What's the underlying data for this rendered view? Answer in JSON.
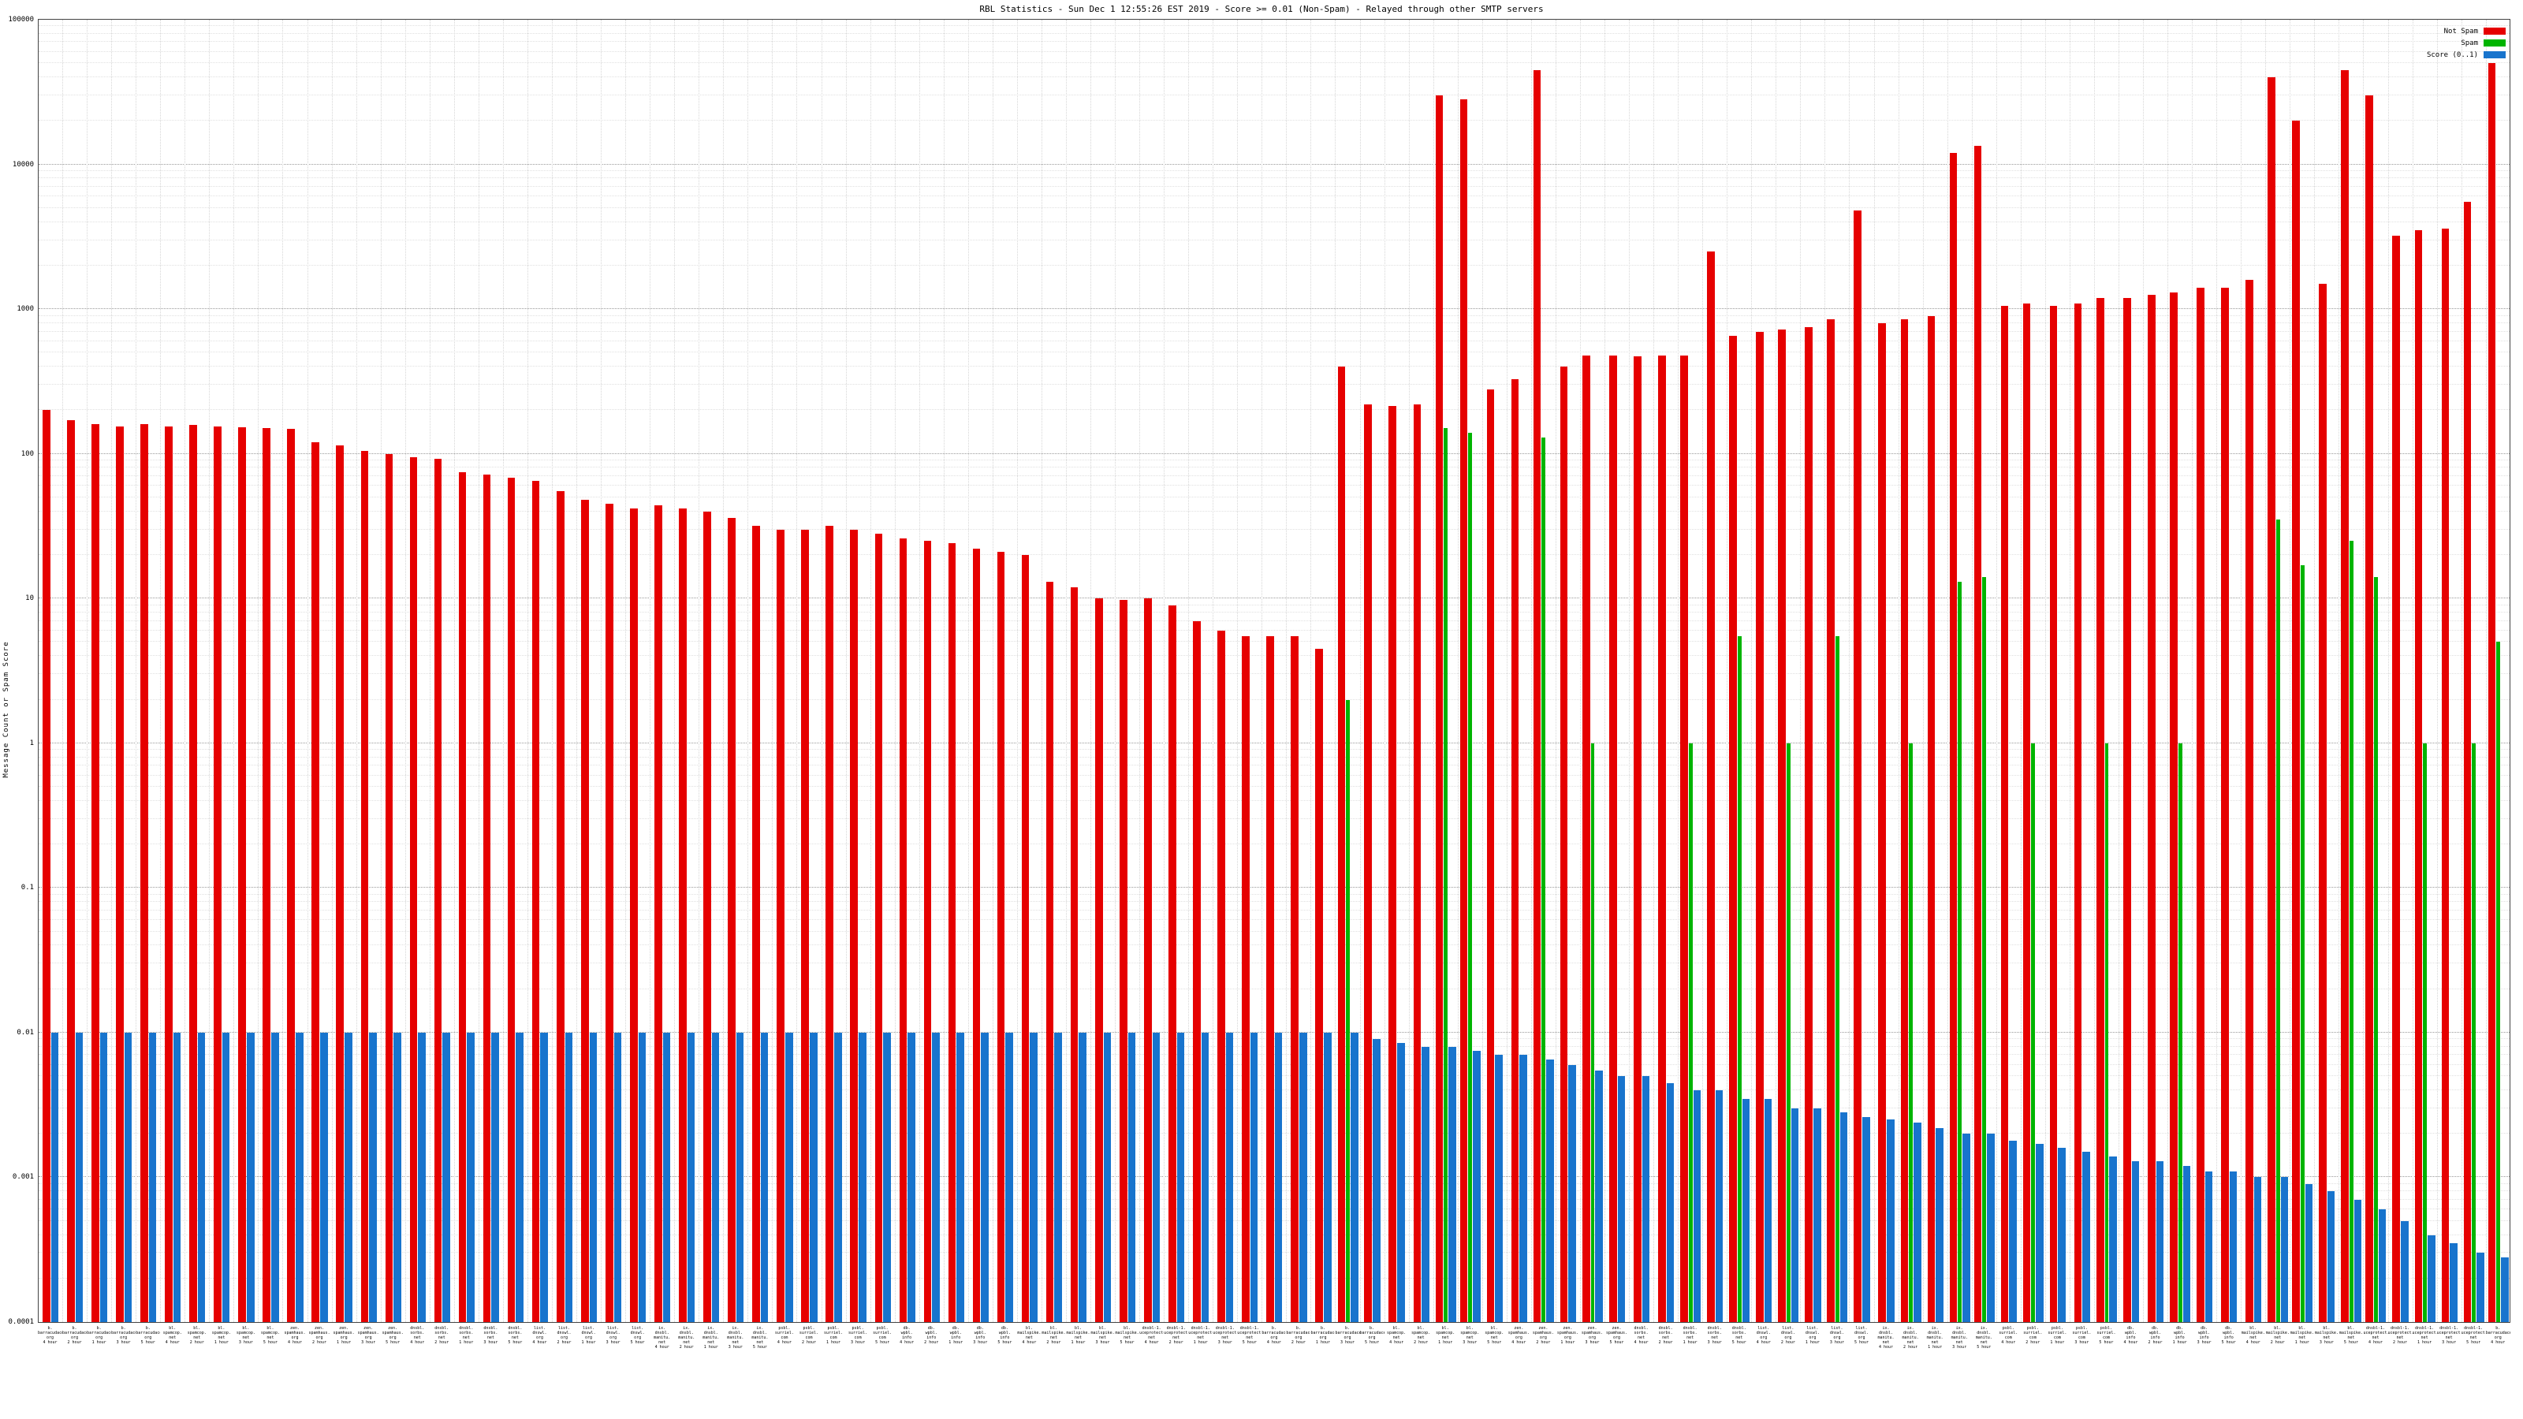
{
  "title": "RBL Statistics - Sun Dec  1 12:55:26 EST 2019 - Score >= 0.01 (Non-Spam) - Relayed through other SMTP servers",
  "ylabel": "Message Count or Spam Score",
  "legend": [
    {
      "label": "Not Spam",
      "color": "#e60000"
    },
    {
      "label": "Spam",
      "color": "#00b400"
    },
    {
      "label": "Score (0..1)",
      "color": "#1874cd"
    }
  ],
  "chart_data": {
    "type": "bar",
    "log_scale": true,
    "grid": true,
    "legend_position": "top-right",
    "ylim": [
      0.0001,
      100000
    ],
    "y_ticks": [
      100000,
      10000,
      1000,
      100,
      10,
      1,
      0.1,
      0.01,
      0.001,
      0.0001
    ],
    "series": [
      "Not Spam",
      "Spam",
      "Score (0..1)"
    ],
    "hosts": [
      "b.barracudacentral.org",
      "bl.spamcop.net",
      "zen.spamhaus.org",
      "dnsbl.sorbs.net",
      "list.dnswl.org",
      "ix.dnsbl.manitu.net",
      "psbl.surriel.com",
      "db.wpbl.info",
      "bl.mailspike.net",
      "dnsbl-1.uceprotect.net"
    ],
    "columns": [
      "host_index",
      "window",
      "not_spam_count",
      "spam_count",
      "score"
    ],
    "categories": [
      [
        0,
        "4 hour",
        200,
        null,
        0.01
      ],
      [
        0,
        "2 hour",
        170,
        null,
        0.01
      ],
      [
        0,
        "1 hour",
        160,
        null,
        0.01
      ],
      [
        0,
        "3 hour",
        155,
        null,
        0.01
      ],
      [
        0,
        "5 hour",
        160,
        null,
        0.01
      ],
      [
        1,
        "4 hour",
        155,
        null,
        0.01
      ],
      [
        1,
        "2 hour",
        158,
        null,
        0.01
      ],
      [
        1,
        "1 hour",
        155,
        null,
        0.01
      ],
      [
        1,
        "3 hour",
        152,
        null,
        0.01
      ],
      [
        1,
        "5 hour",
        150,
        null,
        0.01
      ],
      [
        2,
        "4 hour",
        148,
        null,
        0.01
      ],
      [
        2,
        "2 hour",
        120,
        null,
        0.01
      ],
      [
        2,
        "1 hour",
        115,
        null,
        0.01
      ],
      [
        2,
        "3 hour",
        105,
        null,
        0.01
      ],
      [
        2,
        "5 hour",
        100,
        null,
        0.01
      ],
      [
        3,
        "4 hour",
        95,
        null,
        0.01
      ],
      [
        3,
        "2 hour",
        92,
        null,
        0.01
      ],
      [
        3,
        "1 hour",
        75,
        null,
        0.01
      ],
      [
        3,
        "3 hour",
        72,
        null,
        0.01
      ],
      [
        3,
        "5 hour",
        68,
        null,
        0.01
      ],
      [
        4,
        "4 hour",
        65,
        null,
        0.01
      ],
      [
        4,
        "2 hour",
        55,
        null,
        0.01
      ],
      [
        4,
        "1 hour",
        48,
        null,
        0.01
      ],
      [
        4,
        "3 hour",
        45,
        null,
        0.01
      ],
      [
        4,
        "5 hour",
        42,
        null,
        0.01
      ],
      [
        5,
        "4 hour",
        44,
        null,
        0.01
      ],
      [
        5,
        "2 hour",
        42,
        null,
        0.01
      ],
      [
        5,
        "1 hour",
        40,
        null,
        0.01
      ],
      [
        5,
        "3 hour",
        36,
        null,
        0.01
      ],
      [
        5,
        "5 hour",
        32,
        null,
        0.01
      ],
      [
        6,
        "4 hour",
        30,
        null,
        0.01
      ],
      [
        6,
        "2 hour",
        30,
        null,
        0.01
      ],
      [
        6,
        "1 hour",
        32,
        null,
        0.01
      ],
      [
        6,
        "3 hour",
        30,
        null,
        0.01
      ],
      [
        6,
        "5 hour",
        28,
        null,
        0.01
      ],
      [
        7,
        "4 hour",
        26,
        null,
        0.01
      ],
      [
        7,
        "2 hour",
        25,
        null,
        0.01
      ],
      [
        7,
        "1 hour",
        24,
        null,
        0.01
      ],
      [
        7,
        "3 hour",
        22,
        null,
        0.01
      ],
      [
        7,
        "5 hour",
        21,
        null,
        0.01
      ],
      [
        8,
        "4 hour",
        20,
        null,
        0.01
      ],
      [
        8,
        "2 hour",
        13,
        null,
        0.01
      ],
      [
        8,
        "1 hour",
        12,
        null,
        0.01
      ],
      [
        8,
        "3 hour",
        10,
        null,
        0.01
      ],
      [
        8,
        "5 hour",
        9.8,
        null,
        0.01
      ],
      [
        9,
        "4 hour",
        10,
        null,
        0.01
      ],
      [
        9,
        "2 hour",
        9,
        null,
        0.01
      ],
      [
        9,
        "1 hour",
        7,
        null,
        0.01
      ],
      [
        9,
        "3 hour",
        6,
        null,
        0.01
      ],
      [
        9,
        "5 hour",
        5.5,
        null,
        0.01
      ],
      [
        0,
        "4 hour",
        5.5,
        null,
        0.01
      ],
      [
        0,
        "2 hour",
        5.5,
        null,
        0.01
      ],
      [
        0,
        "1 hour",
        4.5,
        null,
        0.01
      ],
      [
        0,
        "3 hour",
        400,
        2,
        0.01
      ],
      [
        0,
        "5 hour",
        220,
        null,
        0.009
      ],
      [
        1,
        "4 hour",
        215,
        null,
        0.0085
      ],
      [
        1,
        "2 hour",
        220,
        null,
        0.008
      ],
      [
        1,
        "1 hour",
        30000,
        150,
        0.008
      ],
      [
        1,
        "3 hour",
        28000,
        140,
        0.0075
      ],
      [
        1,
        "5 hour",
        280,
        null,
        0.007
      ],
      [
        2,
        "4 hour",
        330,
        null,
        0.007
      ],
      [
        2,
        "2 hour",
        45000,
        130,
        0.0065
      ],
      [
        2,
        "1 hour",
        400,
        null,
        0.006
      ],
      [
        2,
        "3 hour",
        480,
        1,
        0.0055
      ],
      [
        2,
        "5 hour",
        480,
        null,
        0.005
      ],
      [
        3,
        "4 hour",
        470,
        null,
        0.005
      ],
      [
        3,
        "2 hour",
        480,
        null,
        0.0045
      ],
      [
        3,
        "1 hour",
        480,
        1,
        0.004
      ],
      [
        3,
        "3 hour",
        2500,
        null,
        0.004
      ],
      [
        3,
        "5 hour",
        650,
        5.5,
        0.0035
      ],
      [
        4,
        "4 hour",
        700,
        null,
        0.0035
      ],
      [
        4,
        "2 hour",
        720,
        1,
        0.003
      ],
      [
        4,
        "1 hour",
        750,
        null,
        0.003
      ],
      [
        4,
        "3 hour",
        850,
        5.5,
        0.0028
      ],
      [
        4,
        "5 hour",
        4800,
        null,
        0.0026
      ],
      [
        5,
        "4 hour",
        800,
        null,
        0.0025
      ],
      [
        5,
        "2 hour",
        850,
        1,
        0.0024
      ],
      [
        5,
        "1 hour",
        900,
        null,
        0.0022
      ],
      [
        5,
        "3 hour",
        12000,
        13,
        0.002
      ],
      [
        5,
        "5 hour",
        13500,
        14,
        0.002
      ],
      [
        6,
        "4 hour",
        1050,
        null,
        0.0018
      ],
      [
        6,
        "2 hour",
        1100,
        1,
        0.0017
      ],
      [
        6,
        "1 hour",
        1050,
        null,
        0.0016
      ],
      [
        6,
        "3 hour",
        1100,
        null,
        0.0015
      ],
      [
        6,
        "5 hour",
        1200,
        1,
        0.0014
      ],
      [
        7,
        "4 hour",
        1200,
        null,
        0.0013
      ],
      [
        7,
        "2 hour",
        1250,
        null,
        0.0013
      ],
      [
        7,
        "1 hour",
        1300,
        1,
        0.0012
      ],
      [
        7,
        "3 hour",
        1400,
        null,
        0.0011
      ],
      [
        7,
        "5 hour",
        1400,
        null,
        0.0011
      ],
      [
        8,
        "4 hour",
        1600,
        null,
        0.001
      ],
      [
        8,
        "2 hour",
        40000,
        35,
        0.001
      ],
      [
        8,
        "1 hour",
        20000,
        17,
        0.0009
      ],
      [
        8,
        "3 hour",
        1500,
        null,
        0.0008
      ],
      [
        8,
        "5 hour",
        45000,
        25,
        0.0007
      ],
      [
        9,
        "4 hour",
        30000,
        14,
        0.0006
      ],
      [
        9,
        "2 hour",
        3200,
        null,
        0.0005
      ],
      [
        9,
        "1 hour",
        3500,
        1,
        0.0004
      ],
      [
        9,
        "3 hour",
        3600,
        null,
        0.00035
      ],
      [
        9,
        "5 hour",
        5500,
        1,
        0.0003
      ],
      [
        0,
        "4 hour",
        50000,
        5,
        0.00028
      ]
    ]
  }
}
